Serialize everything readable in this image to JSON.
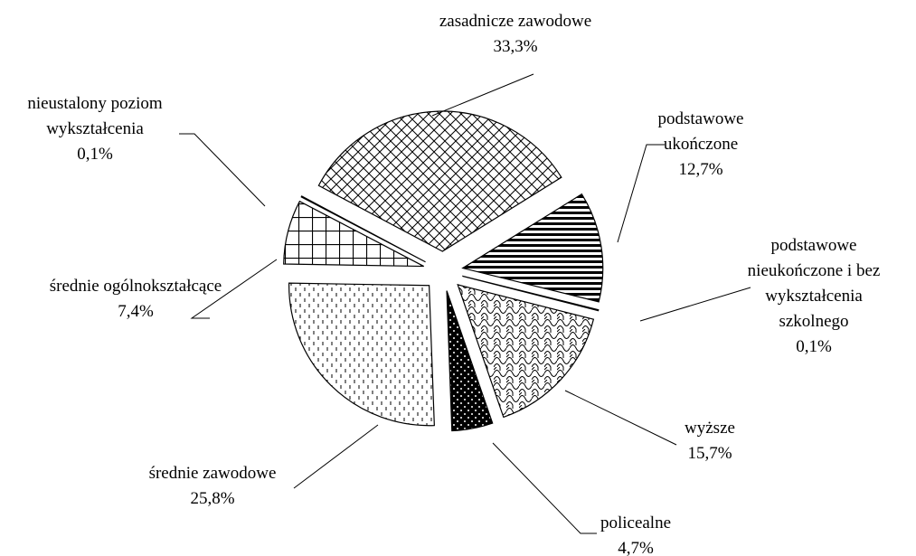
{
  "chart_data": {
    "type": "pie",
    "categories": [
      "zasadnicze zawodowe",
      "podstawowe ukończone",
      "podstawowe nieukończone i bez wykształcenia szkolnego",
      "wyższe",
      "policealne",
      "średnie zawodowe",
      "średnie ogólnokształcące",
      "nieustalony poziom wykształcenia"
    ],
    "values": [
      33.3,
      12.7,
      0.1,
      15.7,
      4.7,
      25.8,
      7.4,
      0.1
    ],
    "value_labels": [
      "33,3%",
      "12,7%",
      "0,1%",
      "15,7%",
      "4,7%",
      "25,8%",
      "7,4%",
      "0,1%"
    ]
  }
}
